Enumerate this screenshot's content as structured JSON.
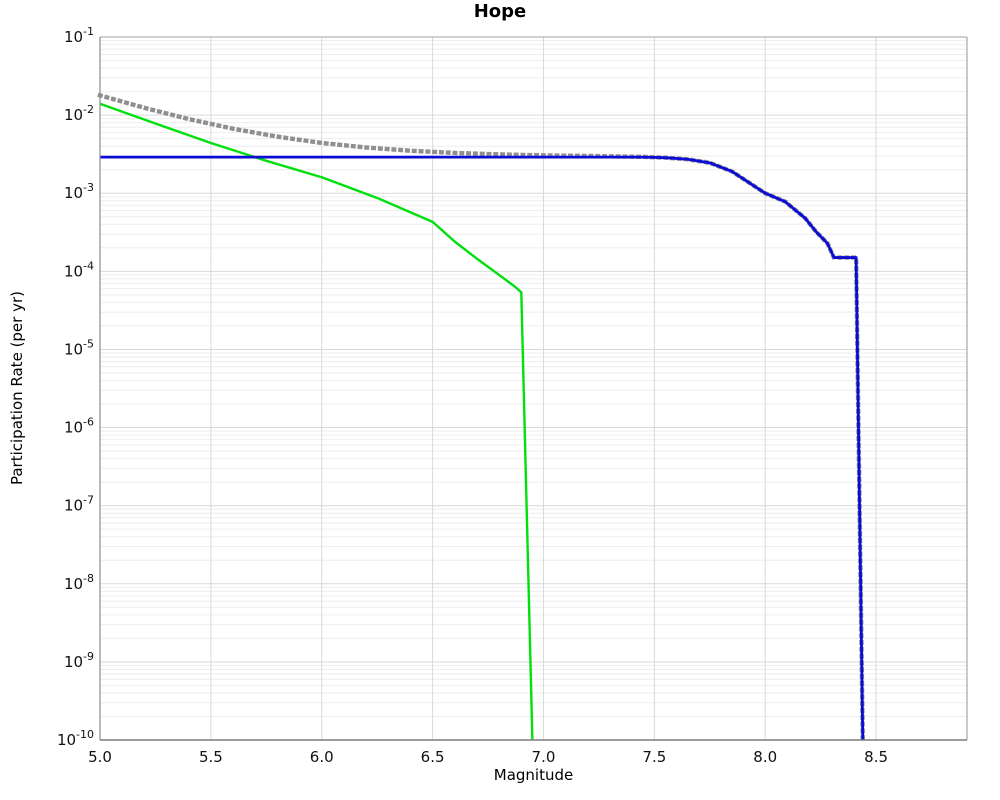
{
  "chart_data": {
    "type": "line",
    "title": "Hope",
    "xlabel": "Magnitude",
    "ylabel": "Participation Rate (per yr)",
    "xlim": [
      5.0,
      8.91
    ],
    "ylim_log10": [
      -10,
      -1
    ],
    "x_ticks": [
      "5.0",
      "5.5",
      "6.0",
      "6.5",
      "7.0",
      "7.5",
      "8.0",
      "8.5"
    ],
    "y_tick_base": "10",
    "y_tick_exponents": [
      -1,
      -2,
      -3,
      -4,
      -5,
      -6,
      -7,
      -8,
      -9,
      -10
    ],
    "grid": {
      "major": true,
      "minor": true,
      "major_color": "#d9d9d9",
      "minor_color": "#eeeeee"
    },
    "legend": "none",
    "background": "#ffffff",
    "series": [
      {
        "name": "gray-dotted-rate",
        "color": "#8f8f8f",
        "style": "dotted",
        "width": 4.4,
        "points": [
          [
            5.0,
            0.0179
          ],
          [
            5.2,
            0.0124
          ],
          [
            5.4,
            0.0089
          ],
          [
            5.6,
            0.0067
          ],
          [
            5.8,
            0.0053
          ],
          [
            6.0,
            0.0044
          ],
          [
            6.2,
            0.00385
          ],
          [
            6.4,
            0.0035
          ],
          [
            6.6,
            0.00328
          ],
          [
            6.8,
            0.00314
          ],
          [
            7.0,
            0.00305
          ],
          [
            7.2,
            0.003
          ],
          [
            7.45,
            0.00292
          ],
          [
            7.55,
            0.00285
          ],
          [
            7.65,
            0.00272
          ],
          [
            7.75,
            0.00245
          ],
          [
            7.85,
            0.0019
          ],
          [
            7.93,
            0.00135
          ],
          [
            8.0,
            0.001
          ],
          [
            8.09,
            0.00078
          ],
          [
            8.18,
            0.00048
          ],
          [
            8.23,
            0.00032
          ],
          [
            8.28,
            0.00023
          ],
          [
            8.31,
            0.00015
          ],
          [
            8.41,
            0.00015
          ],
          [
            8.44,
            1e-10
          ]
        ]
      },
      {
        "name": "green-rate",
        "color": "#00e00c",
        "style": "solid",
        "width": 2.4,
        "points": [
          [
            5.0,
            0.014
          ],
          [
            5.25,
            0.0078
          ],
          [
            5.5,
            0.0044
          ],
          [
            5.75,
            0.0026
          ],
          [
            6.0,
            0.0016
          ],
          [
            6.25,
            0.00087
          ],
          [
            6.5,
            0.00043
          ],
          [
            6.6,
            0.00024
          ],
          [
            6.7,
            0.000145
          ],
          [
            6.8,
            9e-05
          ],
          [
            6.87,
            6.4e-05
          ],
          [
            6.9,
            5.4e-05
          ],
          [
            6.95,
            1e-10
          ]
        ]
      },
      {
        "name": "blue-rate",
        "color": "#0b0bd6",
        "style": "solid",
        "width": 2.8,
        "points": [
          [
            5.0,
            0.0029
          ],
          [
            7.45,
            0.0029
          ],
          [
            7.55,
            0.00285
          ],
          [
            7.65,
            0.00272
          ],
          [
            7.75,
            0.00245
          ],
          [
            7.85,
            0.0019
          ],
          [
            7.93,
            0.00135
          ],
          [
            8.0,
            0.001
          ],
          [
            8.09,
            0.00078
          ],
          [
            8.18,
            0.00048
          ],
          [
            8.23,
            0.00032
          ],
          [
            8.28,
            0.00023
          ],
          [
            8.31,
            0.00015
          ],
          [
            8.41,
            0.00015
          ],
          [
            8.44,
            1e-10
          ]
        ]
      }
    ]
  }
}
